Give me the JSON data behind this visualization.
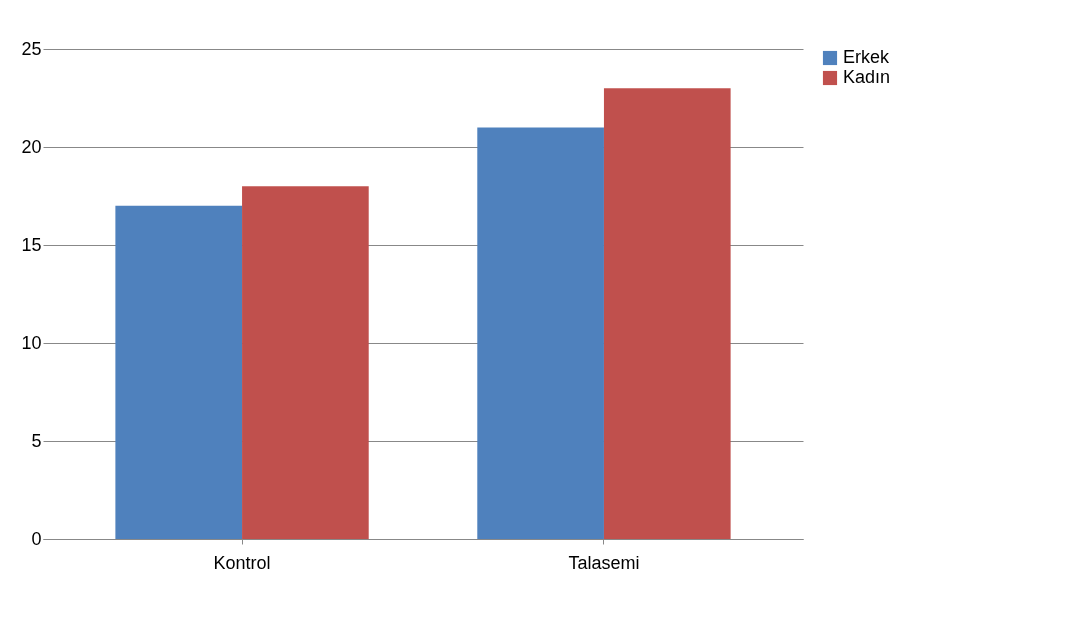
{
  "chart_data": {
    "type": "bar",
    "categories": [
      "Kontrol",
      "Talasemi"
    ],
    "series": [
      {
        "name": "Erkek",
        "color": "#4f81bd",
        "values": [
          17,
          21
        ]
      },
      {
        "name": "Kadın",
        "color": "#c0504d",
        "values": [
          18,
          23
        ]
      }
    ],
    "ylim": [
      0,
      25
    ],
    "yticks": [
      0,
      5,
      10,
      15,
      20,
      25
    ],
    "grid": "y",
    "legend": "right"
  }
}
